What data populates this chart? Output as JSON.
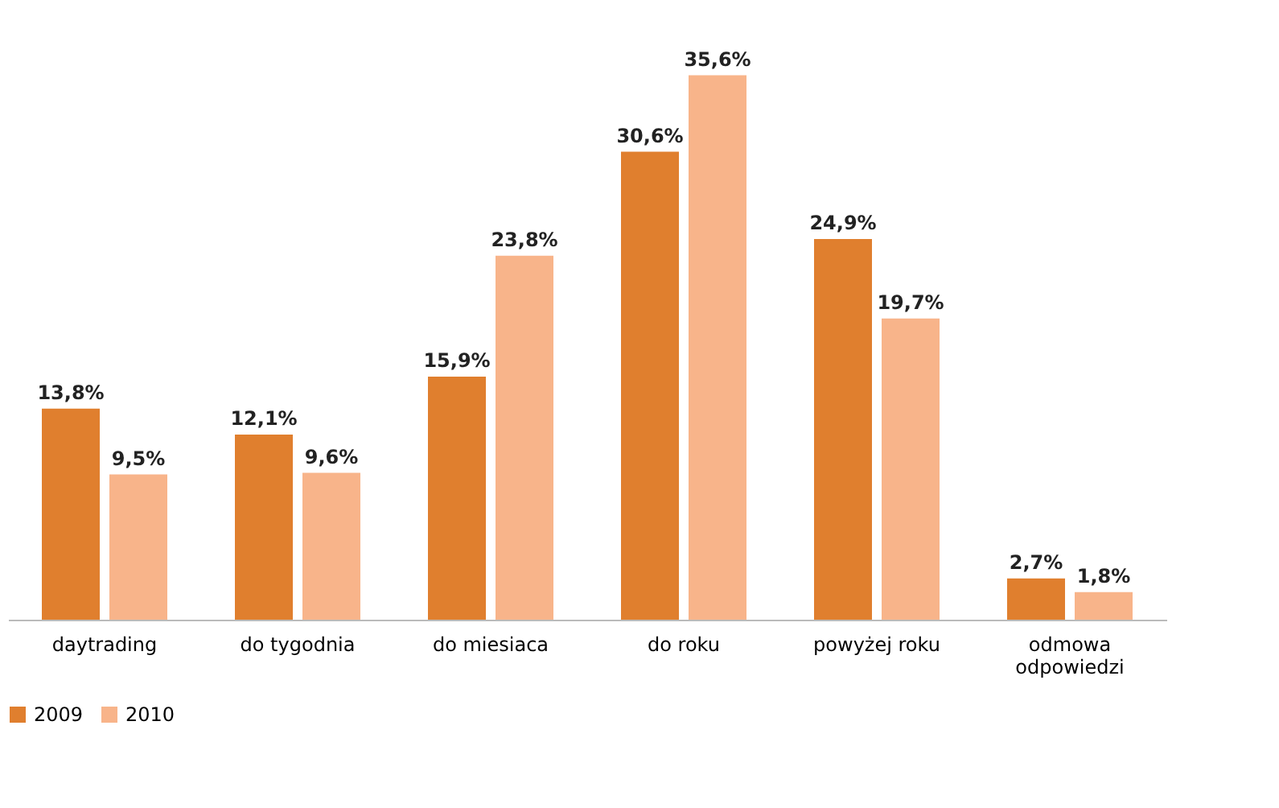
{
  "chart_data": {
    "type": "bar",
    "categories": [
      "daytrading",
      "do tygodnia",
      "do miesiaca",
      "do roku",
      "powyżej roku",
      "odmowa\nodpowiedzi"
    ],
    "series": [
      {
        "name": "2009",
        "color": "#e07f2e",
        "values": [
          13.8,
          12.1,
          15.9,
          30.6,
          24.9,
          2.7
        ],
        "value_labels": [
          "13,8%",
          "12,1%",
          "15,9%",
          "30,6%",
          "24,9%",
          "2,7%"
        ]
      },
      {
        "name": "2010",
        "color": "#f8b48a",
        "values": [
          9.5,
          9.6,
          23.8,
          35.6,
          19.7,
          1.8
        ],
        "value_labels": [
          "9,5%",
          "9,6%",
          "23,8%",
          "35,6%",
          "19,7%",
          "1,8%"
        ]
      }
    ],
    "legend": "bottom",
    "grid": false
  }
}
